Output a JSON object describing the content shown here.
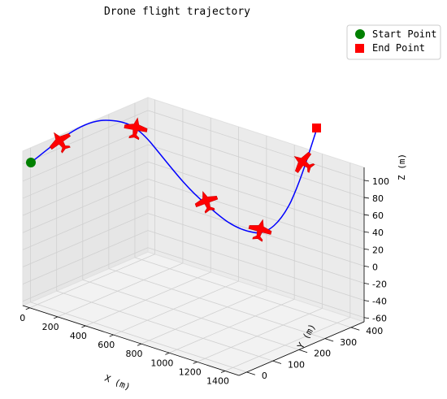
{
  "chart_data": {
    "type": "line",
    "title": "Drone flight trajectory",
    "xlabel": "X (m)",
    "ylabel": "Y (m)",
    "zlabel": "Z (m)",
    "x_ticks": [
      0,
      200,
      400,
      600,
      800,
      1000,
      1200,
      1400
    ],
    "y_ticks": [
      0,
      100,
      200,
      300,
      400
    ],
    "z_ticks": [
      -60,
      -40,
      -20,
      0,
      20,
      40,
      60,
      80,
      100
    ],
    "xlim": [
      -50,
      1500
    ],
    "ylim": [
      -30,
      450
    ],
    "zlim": [
      -65,
      115
    ],
    "grid": true,
    "legend_position": "top-right",
    "legend": [
      {
        "label": "Start Point",
        "marker": "circle",
        "color": "#008000"
      },
      {
        "label": "End Point",
        "marker": "square",
        "color": "#ff0000"
      }
    ],
    "series": [
      {
        "color": "#0000ff",
        "path": "curve from the start point to the end point"
      }
    ],
    "drone_markers": {
      "color": "#ff0000",
      "count": 5
    }
  }
}
